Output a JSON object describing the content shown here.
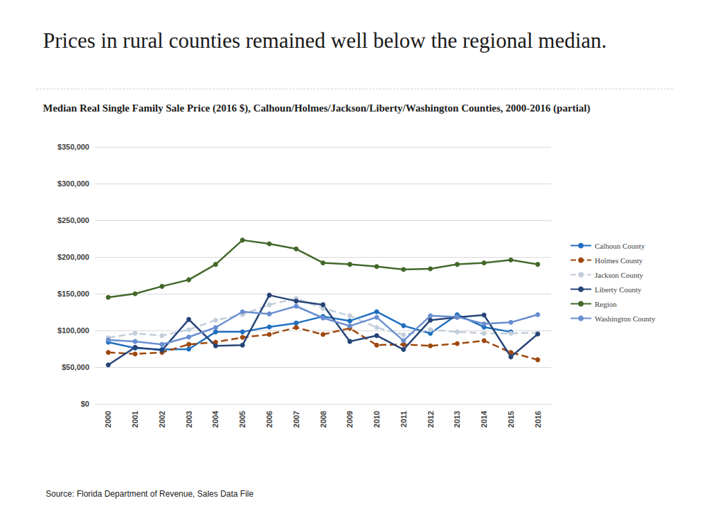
{
  "chart_data": {
    "type": "line",
    "title": "Prices in rural counties remained well below the regional median.",
    "subtitle": "Median Real Single Family Sale Price (2016 $), Calhoun/Holmes/Jackson/Liberty/Washington Counties, 2000-2016 (partial)",
    "source": "Source: Florida Department of Revenue, Sales Data File",
    "categories": [
      "2000",
      "2001",
      "2002",
      "2003",
      "2004",
      "2005",
      "2006",
      "2007",
      "2008",
      "2009",
      "2010",
      "2011",
      "2012",
      "2013",
      "2014",
      "2015",
      "2016"
    ],
    "series": [
      {
        "name": "Calhoun County",
        "color": "#1f6fbf",
        "marker": "circle",
        "line_style": "solid",
        "values": [
          84000,
          76000,
          74000,
          74500,
          98000,
          98000,
          104700,
          110000,
          119000,
          113000,
          125500,
          106500,
          96000,
          121500,
          104500,
          98000,
          null
        ]
      },
      {
        "name": "Holmes County",
        "color": "#9e480e",
        "marker": "circle",
        "line_style": "dashed",
        "values": [
          70000,
          68000,
          70000,
          81000,
          84000,
          90500,
          94500,
          104000,
          94500,
          103000,
          80000,
          81000,
          79000,
          82000,
          86000,
          70000,
          60000
        ]
      },
      {
        "name": "Jackson County",
        "color": "#c3cedb",
        "marker": "circle",
        "line_style": "dashed",
        "values": [
          90000,
          96000,
          93000,
          101000,
          114000,
          121500,
          135000,
          143500,
          130000,
          120000,
          104000,
          94000,
          101000,
          98000,
          96000,
          96000,
          97000
        ]
      },
      {
        "name": "Liberty County",
        "color": "#264478",
        "marker": "circle",
        "line_style": "solid",
        "values": [
          53000,
          77000,
          73000,
          115000,
          79000,
          80000,
          148000,
          140000,
          135000,
          85000,
          93000,
          74000,
          114000,
          118000,
          121000,
          64000,
          95000
        ]
      },
      {
        "name": "Region",
        "color": "#43682b",
        "marker": "circle",
        "line_style": "solid",
        "values": [
          145000,
          150000,
          160000,
          169000,
          190000,
          223000,
          218000,
          211000,
          192000,
          190000,
          187000,
          183000,
          184000,
          190000,
          192000,
          196000,
          190000
        ]
      },
      {
        "name": "Washington County",
        "color": "#698ed0",
        "marker": "circle",
        "line_style": "solid",
        "values": [
          87000,
          85000,
          81000,
          91000,
          104000,
          125500,
          122500,
          133000,
          117000,
          106000,
          118000,
          86000,
          120000,
          118500,
          109000,
          111000,
          121500
        ]
      }
    ],
    "ylim": [
      0,
      350000
    ],
    "yticks": [
      {
        "value": 0,
        "label": "$0"
      },
      {
        "value": 50000,
        "label": "$50,000"
      },
      {
        "value": 100000,
        "label": "$100,000"
      },
      {
        "value": 150000,
        "label": "$150,000"
      },
      {
        "value": 200000,
        "label": "$200,000"
      },
      {
        "value": 250000,
        "label": "$250,000"
      },
      {
        "value": 300000,
        "label": "$300,000"
      },
      {
        "value": 350000,
        "label": "$350,000"
      }
    ],
    "grid": true,
    "legend": "right"
  }
}
